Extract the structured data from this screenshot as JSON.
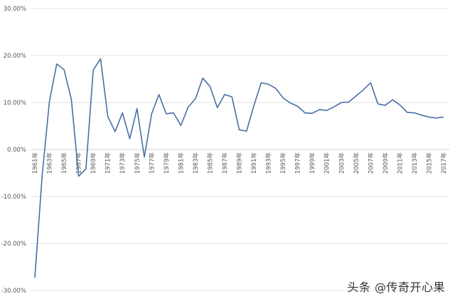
{
  "chart_data": {
    "type": "line",
    "title": "",
    "xlabel": "",
    "ylabel": "",
    "ylim": [
      -30,
      30
    ],
    "y_tick_values": [
      30,
      20,
      10,
      0,
      -10,
      -20,
      -30
    ],
    "y_tick_labels": [
      "30.00%",
      "20.00%",
      "10.00%",
      "0.00%",
      "-10.00%",
      "-20.00%",
      "-30.00%"
    ],
    "grid": true,
    "legend": "none",
    "x_tick_labels": [
      "1961年",
      "1963年",
      "1965年",
      "1967年",
      "1969年",
      "1971年",
      "1973年",
      "1975年",
      "1977年",
      "1979年",
      "1981年",
      "1983年",
      "1985年",
      "1987年",
      "1989年",
      "1991年",
      "1993年",
      "1995年",
      "1997年",
      "1999年",
      "2001年",
      "2003年",
      "2005年",
      "2007年",
      "2009年",
      "2011年",
      "2013年",
      "2015年",
      "2017年"
    ],
    "series": [
      {
        "color": "#4a6fa5",
        "x": [
          1961,
          1962,
          1963,
          1964,
          1965,
          1966,
          1967,
          1968,
          1969,
          1970,
          1971,
          1972,
          1973,
          1974,
          1975,
          1976,
          1977,
          1978,
          1979,
          1980,
          1981,
          1982,
          1983,
          1984,
          1985,
          1986,
          1987,
          1988,
          1989,
          1990,
          1991,
          1992,
          1993,
          1994,
          1995,
          1996,
          1997,
          1998,
          1999,
          2000,
          2001,
          2002,
          2003,
          2004,
          2005,
          2006,
          2007,
          2008,
          2009,
          2010,
          2011,
          2012,
          2013,
          2014,
          2015,
          2016,
          2017
        ],
        "values": [
          -27.3,
          -5.6,
          10.3,
          18.2,
          17.0,
          10.7,
          -5.7,
          -4.1,
          16.9,
          19.3,
          7.0,
          3.8,
          7.8,
          2.3,
          8.7,
          -1.6,
          7.6,
          11.7,
          7.6,
          7.8,
          5.1,
          9.0,
          10.8,
          15.2,
          13.4,
          8.9,
          11.7,
          11.2,
          4.2,
          3.9,
          9.3,
          14.2,
          13.9,
          13.0,
          11.0,
          9.9,
          9.2,
          7.8,
          7.7,
          8.5,
          8.3,
          9.1,
          10.0,
          10.1,
          11.4,
          12.7,
          14.2,
          9.7,
          9.4,
          10.6,
          9.5,
          7.9,
          7.8,
          7.3,
          6.9,
          6.7,
          6.9
        ]
      }
    ]
  },
  "watermark": "头条 @传奇开心果"
}
